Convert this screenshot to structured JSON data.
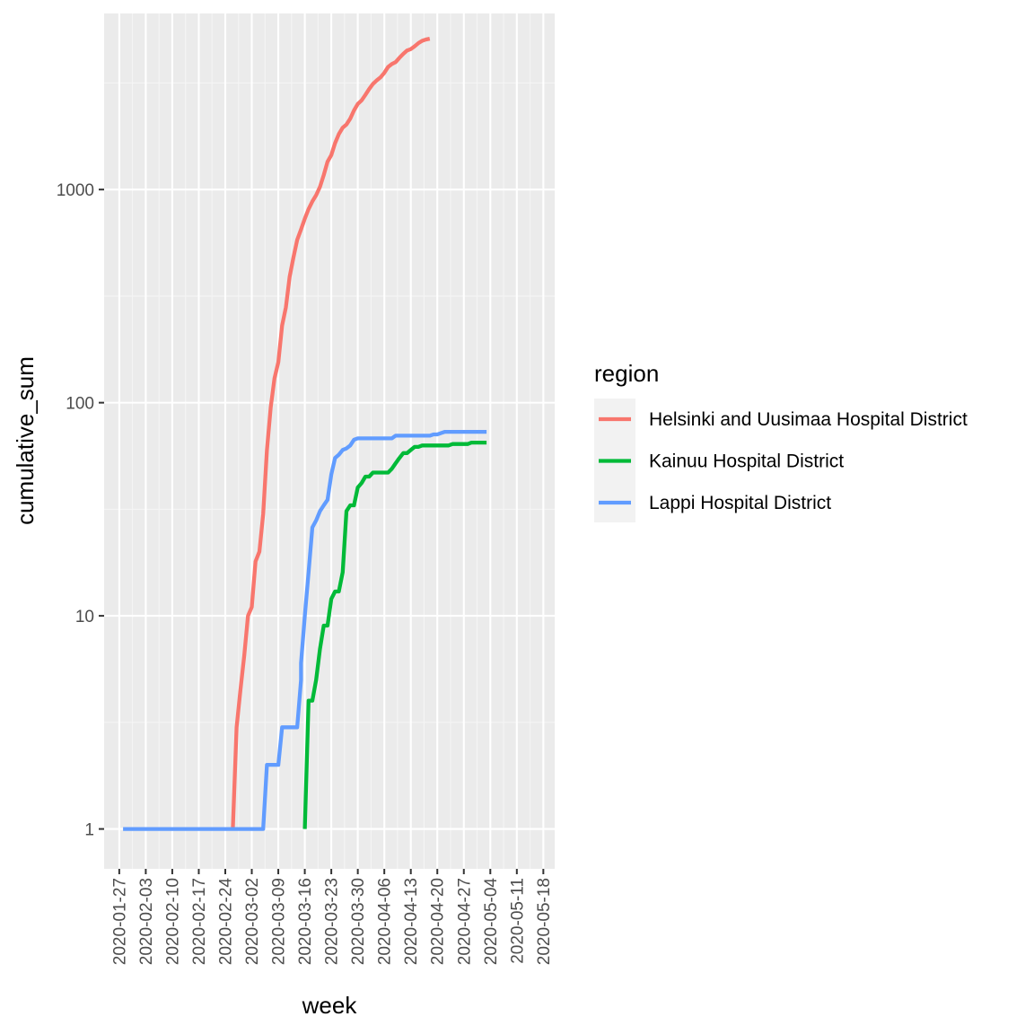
{
  "chart_data": {
    "type": "line",
    "title": "",
    "xlabel": "week",
    "ylabel": "cumulative_sum",
    "x_scale": "date",
    "y_scale": "log10",
    "xlim": [
      "2020-01-23",
      "2020-05-21"
    ],
    "ylim": [
      0.65,
      6700
    ],
    "x_ticks": [
      "2020-01-27",
      "2020-02-03",
      "2020-02-10",
      "2020-02-17",
      "2020-02-24",
      "2020-03-02",
      "2020-03-09",
      "2020-03-16",
      "2020-03-23",
      "2020-03-30",
      "2020-04-06",
      "2020-04-13",
      "2020-04-20",
      "2020-04-27",
      "2020-05-04",
      "2020-05-11",
      "2020-05-18"
    ],
    "y_ticks": [
      1,
      10,
      100,
      1000
    ],
    "y_tick_labels": [
      "1",
      "10",
      "100",
      "1000"
    ],
    "grid": true,
    "legend": {
      "title": "region",
      "position": "right"
    },
    "series": [
      {
        "name": "Helsinki and Uusimaa Hospital District",
        "color": "#F8766D",
        "points": [
          [
            "2020-02-26",
            1
          ],
          [
            "2020-02-27",
            3
          ],
          [
            "2020-02-28",
            4.5
          ],
          [
            "2020-02-29",
            6.5
          ],
          [
            "2020-03-01",
            10
          ],
          [
            "2020-03-02",
            11
          ],
          [
            "2020-03-03",
            18
          ],
          [
            "2020-03-04",
            20
          ],
          [
            "2020-03-05",
            30
          ],
          [
            "2020-03-06",
            60
          ],
          [
            "2020-03-07",
            95
          ],
          [
            "2020-03-08",
            130
          ],
          [
            "2020-03-09",
            155
          ],
          [
            "2020-03-10",
            230
          ],
          [
            "2020-03-11",
            280
          ],
          [
            "2020-03-12",
            390
          ],
          [
            "2020-03-13",
            480
          ],
          [
            "2020-03-14",
            580
          ],
          [
            "2020-03-15",
            650
          ],
          [
            "2020-03-16",
            730
          ],
          [
            "2020-03-17",
            810
          ],
          [
            "2020-03-18",
            880
          ],
          [
            "2020-03-19",
            940
          ],
          [
            "2020-03-20",
            1030
          ],
          [
            "2020-03-21",
            1170
          ],
          [
            "2020-03-22",
            1350
          ],
          [
            "2020-03-23",
            1450
          ],
          [
            "2020-03-24",
            1650
          ],
          [
            "2020-03-25",
            1820
          ],
          [
            "2020-03-26",
            1950
          ],
          [
            "2020-03-27",
            2020
          ],
          [
            "2020-03-28",
            2150
          ],
          [
            "2020-03-29",
            2350
          ],
          [
            "2020-03-30",
            2520
          ],
          [
            "2020-03-31",
            2620
          ],
          [
            "2020-04-01",
            2780
          ],
          [
            "2020-04-02",
            2960
          ],
          [
            "2020-04-03",
            3130
          ],
          [
            "2020-04-04",
            3250
          ],
          [
            "2020-04-05",
            3360
          ],
          [
            "2020-04-06",
            3530
          ],
          [
            "2020-04-07",
            3760
          ],
          [
            "2020-04-08",
            3880
          ],
          [
            "2020-04-09",
            3960
          ],
          [
            "2020-04-10",
            4150
          ],
          [
            "2020-04-11",
            4330
          ],
          [
            "2020-04-12",
            4490
          ],
          [
            "2020-04-13",
            4560
          ],
          [
            "2020-04-14",
            4700
          ],
          [
            "2020-04-15",
            4860
          ],
          [
            "2020-04-16",
            4990
          ],
          [
            "2020-04-17",
            5060
          ],
          [
            "2020-04-18",
            5100
          ]
        ]
      },
      {
        "name": "Kainuu Hospital District",
        "color": "#00BA38",
        "points": [
          [
            "2020-03-16",
            1
          ],
          [
            "2020-03-17",
            4
          ],
          [
            "2020-03-18",
            4
          ],
          [
            "2020-03-19",
            5
          ],
          [
            "2020-03-20",
            7
          ],
          [
            "2020-03-21",
            9
          ],
          [
            "2020-03-22",
            9
          ],
          [
            "2020-03-23",
            12
          ],
          [
            "2020-03-24",
            13
          ],
          [
            "2020-03-25",
            13
          ],
          [
            "2020-03-26",
            16
          ],
          [
            "2020-03-27",
            31
          ],
          [
            "2020-03-28",
            33
          ],
          [
            "2020-03-29",
            33
          ],
          [
            "2020-03-30",
            40
          ],
          [
            "2020-03-31",
            42
          ],
          [
            "2020-04-01",
            45
          ],
          [
            "2020-04-02",
            45
          ],
          [
            "2020-04-03",
            47
          ],
          [
            "2020-04-04",
            47
          ],
          [
            "2020-04-05",
            47
          ],
          [
            "2020-04-06",
            47
          ],
          [
            "2020-04-07",
            47
          ],
          [
            "2020-04-08",
            49
          ],
          [
            "2020-04-09",
            52
          ],
          [
            "2020-04-10",
            55
          ],
          [
            "2020-04-11",
            58
          ],
          [
            "2020-04-12",
            58
          ],
          [
            "2020-04-13",
            60
          ],
          [
            "2020-04-14",
            62
          ],
          [
            "2020-04-15",
            62
          ],
          [
            "2020-04-16",
            63
          ],
          [
            "2020-04-17",
            63
          ],
          [
            "2020-04-18",
            63
          ],
          [
            "2020-04-21",
            63
          ],
          [
            "2020-04-22",
            63
          ],
          [
            "2020-04-23",
            63
          ],
          [
            "2020-04-24",
            64
          ],
          [
            "2020-04-25",
            64
          ],
          [
            "2020-04-28",
            64
          ],
          [
            "2020-04-29",
            65
          ],
          [
            "2020-05-02",
            65
          ],
          [
            "2020-05-03",
            65
          ]
        ]
      },
      {
        "name": "Lappi Hospital District",
        "color": "#619CFF",
        "points": [
          [
            "2020-01-28",
            1
          ],
          [
            "2020-02-10",
            1
          ],
          [
            "2020-02-24",
            1
          ],
          [
            "2020-03-05",
            1
          ],
          [
            "2020-03-06",
            2
          ],
          [
            "2020-03-09",
            2
          ],
          [
            "2020-03-10",
            3
          ],
          [
            "2020-03-14",
            3
          ],
          [
            "2020-03-15",
            5
          ],
          [
            "2020-03-15",
            6
          ],
          [
            "2020-03-16",
            10
          ],
          [
            "2020-03-17",
            16
          ],
          [
            "2020-03-17",
            16
          ],
          [
            "2020-03-18",
            26
          ],
          [
            "2020-03-19",
            28
          ],
          [
            "2020-03-20",
            31
          ],
          [
            "2020-03-21",
            33
          ],
          [
            "2020-03-22",
            35
          ],
          [
            "2020-03-23",
            46
          ],
          [
            "2020-03-24",
            55
          ],
          [
            "2020-03-25",
            57
          ],
          [
            "2020-03-26",
            60
          ],
          [
            "2020-03-27",
            61
          ],
          [
            "2020-03-28",
            63
          ],
          [
            "2020-03-29",
            67
          ],
          [
            "2020-03-30",
            68
          ],
          [
            "2020-04-08",
            68
          ],
          [
            "2020-04-09",
            70
          ],
          [
            "2020-04-15",
            70
          ],
          [
            "2020-04-18",
            70
          ],
          [
            "2020-04-19",
            71
          ],
          [
            "2020-04-20",
            71
          ],
          [
            "2020-04-21",
            72
          ],
          [
            "2020-04-22",
            73
          ],
          [
            "2020-04-28",
            73
          ],
          [
            "2020-05-03",
            73
          ]
        ]
      }
    ]
  }
}
